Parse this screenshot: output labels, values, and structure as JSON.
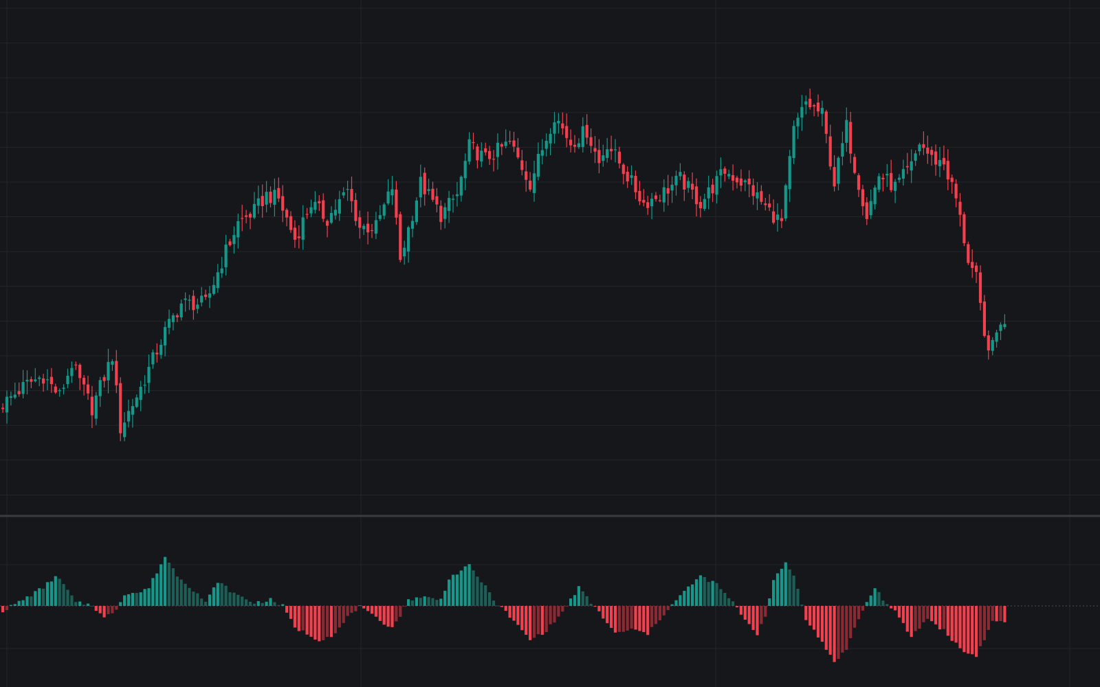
{
  "colors": {
    "background": "#16171b",
    "grid": "#24262b",
    "separator": "#3a3c42",
    "up": "#15988a",
    "down": "#f1414f",
    "up_faded": "#1d5f57",
    "down_faded": "#8c2a33",
    "zero_line": "#4a4d55"
  },
  "chart_data": [
    {
      "type": "candlestick",
      "title": "",
      "xlabel": "",
      "ylabel": "",
      "grid": true,
      "num_candles": 248,
      "ylim": [
        0,
        100
      ],
      "close_path": [
        [
          0,
          20
        ],
        [
          6,
          25
        ],
        [
          10,
          27
        ],
        [
          14,
          22
        ],
        [
          17,
          30
        ],
        [
          22,
          19
        ],
        [
          27,
          32
        ],
        [
          29,
          14
        ],
        [
          34,
          24
        ],
        [
          40,
          38
        ],
        [
          44,
          45
        ],
        [
          50,
          45
        ],
        [
          55,
          58
        ],
        [
          58,
          65
        ],
        [
          62,
          68
        ],
        [
          65,
          72
        ],
        [
          68,
          71
        ],
        [
          72,
          61
        ],
        [
          76,
          70
        ],
        [
          80,
          66
        ],
        [
          85,
          73
        ],
        [
          88,
          64
        ],
        [
          92,
          64
        ],
        [
          96,
          74
        ],
        [
          98,
          56
        ],
        [
          103,
          75
        ],
        [
          108,
          67
        ],
        [
          112,
          72
        ],
        [
          115,
          84
        ],
        [
          119,
          81
        ],
        [
          125,
          85
        ],
        [
          130,
          75
        ],
        [
          136,
          92
        ],
        [
          140,
          85
        ],
        [
          144,
          88
        ],
        [
          147,
          80
        ],
        [
          149,
          85
        ],
        [
          152,
          80
        ],
        [
          158,
          70
        ],
        [
          162,
          72
        ],
        [
          167,
          76
        ],
        [
          172,
          70
        ],
        [
          178,
          78
        ],
        [
          184,
          74
        ],
        [
          188,
          69
        ],
        [
          192,
          65
        ],
        [
          195,
          88
        ],
        [
          198,
          95
        ],
        [
          202,
          92
        ],
        [
          205,
          75
        ],
        [
          208,
          89
        ],
        [
          210,
          79
        ],
        [
          213,
          67
        ],
        [
          216,
          77
        ],
        [
          220,
          74
        ],
        [
          224,
          79
        ],
        [
          226,
          85
        ],
        [
          229,
          81
        ],
        [
          232,
          80
        ],
        [
          235,
          71
        ],
        [
          238,
          56
        ],
        [
          240,
          51
        ],
        [
          242,
          36
        ],
        [
          244,
          34
        ],
        [
          246,
          41
        ],
        [
          247,
          39
        ]
      ]
    },
    {
      "type": "bar",
      "title": "",
      "zero_line": true,
      "ylim": [
        -100,
        100
      ],
      "wave_path": [
        [
          0,
          -8
        ],
        [
          5,
          10
        ],
        [
          10,
          30
        ],
        [
          13,
          48
        ],
        [
          15,
          35
        ],
        [
          18,
          5
        ],
        [
          22,
          2
        ],
        [
          25,
          -20
        ],
        [
          28,
          -5
        ],
        [
          30,
          20
        ],
        [
          34,
          22
        ],
        [
          36,
          30
        ],
        [
          40,
          80
        ],
        [
          43,
          50
        ],
        [
          48,
          20
        ],
        [
          50,
          5
        ],
        [
          53,
          40
        ],
        [
          57,
          20
        ],
        [
          62,
          5
        ],
        [
          66,
          10
        ],
        [
          69,
          0
        ],
        [
          72,
          -35
        ],
        [
          78,
          -55
        ],
        [
          82,
          -45
        ],
        [
          86,
          -10
        ],
        [
          88,
          -2
        ],
        [
          92,
          -20
        ],
        [
          96,
          -35
        ],
        [
          98,
          -15
        ],
        [
          100,
          10
        ],
        [
          103,
          15
        ],
        [
          108,
          10
        ],
        [
          110,
          45
        ],
        [
          115,
          65
        ],
        [
          118,
          40
        ],
        [
          122,
          2
        ],
        [
          124,
          -10
        ],
        [
          130,
          -55
        ],
        [
          134,
          -40
        ],
        [
          138,
          -10
        ],
        [
          140,
          10
        ],
        [
          142,
          30
        ],
        [
          145,
          5
        ],
        [
          147,
          -10
        ],
        [
          151,
          -45
        ],
        [
          155,
          -38
        ],
        [
          159,
          -45
        ],
        [
          164,
          -5
        ],
        [
          169,
          30
        ],
        [
          172,
          48
        ],
        [
          176,
          35
        ],
        [
          180,
          5
        ],
        [
          184,
          -30
        ],
        [
          186,
          -45
        ],
        [
          188,
          -15
        ],
        [
          190,
          40
        ],
        [
          193,
          70
        ],
        [
          195,
          50
        ],
        [
          198,
          -20
        ],
        [
          202,
          -60
        ],
        [
          205,
          -90
        ],
        [
          208,
          -70
        ],
        [
          211,
          -20
        ],
        [
          213,
          5
        ],
        [
          215,
          30
        ],
        [
          218,
          2
        ],
        [
          220,
          -10
        ],
        [
          224,
          -50
        ],
        [
          226,
          -35
        ],
        [
          228,
          -20
        ],
        [
          232,
          -40
        ],
        [
          237,
          -75
        ],
        [
          240,
          -80
        ],
        [
          243,
          -40
        ],
        [
          244,
          -25
        ],
        [
          246,
          -25
        ],
        [
          247,
          -25
        ]
      ]
    }
  ]
}
